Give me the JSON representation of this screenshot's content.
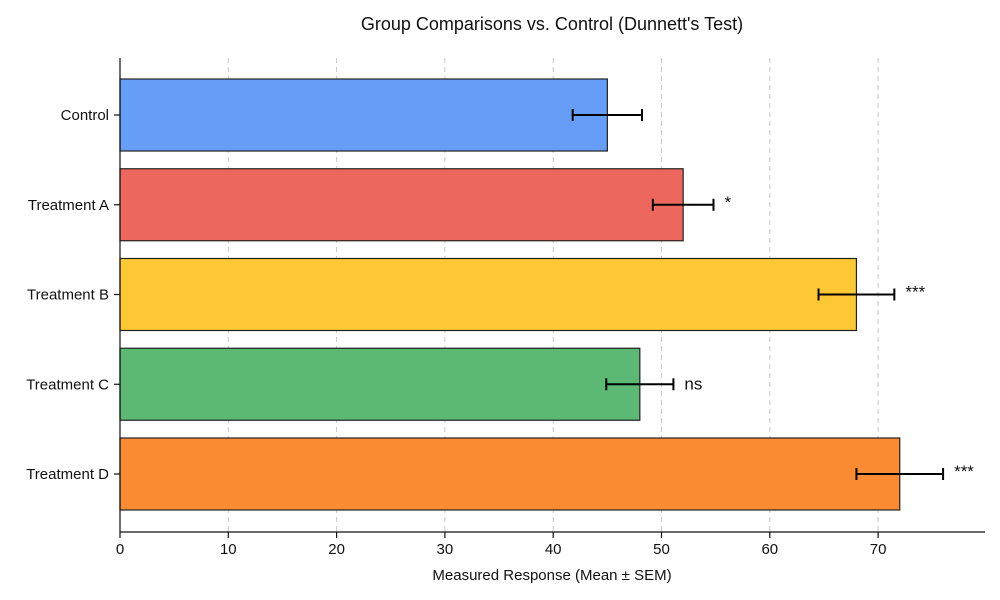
{
  "chart_data": {
    "type": "bar",
    "orientation": "horizontal",
    "title": "Group Comparisons vs. Control (Dunnett's Test)",
    "xlabel": "Measured Response (Mean ± SEM)",
    "ylabel": "",
    "xlim": [
      0,
      80
    ],
    "x_ticks": [
      0,
      10,
      20,
      30,
      40,
      50,
      60,
      70
    ],
    "grid": "vertical dashed",
    "categories": [
      "Control",
      "Treatment A",
      "Treatment B",
      "Treatment C",
      "Treatment D"
    ],
    "values": [
      45,
      52,
      68,
      48,
      72
    ],
    "errors": [
      3.2,
      2.8,
      3.5,
      3.1,
      4.0
    ],
    "significance": [
      "",
      "*",
      "***",
      "ns",
      "***"
    ],
    "colors": [
      "#669df6",
      "#ee675c",
      "#fcc934",
      "#5bb974",
      "#fa8b33"
    ]
  }
}
